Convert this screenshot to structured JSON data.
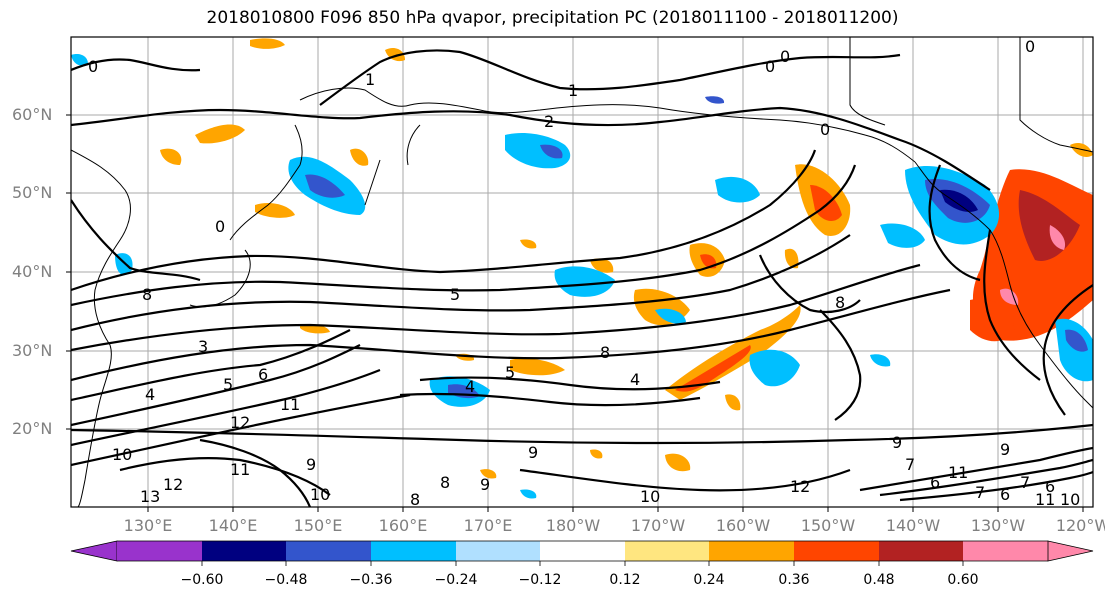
{
  "title": "2018010800 F096 850 hPa qvapor, precipitation PC (2018011100 - 2018011200)",
  "map": {
    "latitude_labels": [
      "60°N",
      "50°N",
      "40°N",
      "30°N",
      "20°N"
    ],
    "longitude_labels": [
      "130°E",
      "140°E",
      "150°E",
      "160°E",
      "170°E",
      "180°W",
      "170°W",
      "160°W",
      "150°W",
      "140°W",
      "130°W",
      "120°W"
    ],
    "contour_labels": [
      "0",
      "0",
      "0",
      "1",
      "1",
      "2",
      "0",
      "0",
      "0",
      "5",
      "3",
      "4",
      "5",
      "6",
      "8",
      "8",
      "4",
      "4",
      "5",
      "12",
      "11",
      "10",
      "9",
      "9",
      "9",
      "10",
      "12",
      "11",
      "10",
      "13",
      "12",
      "8",
      "8",
      "8",
      "9",
      "7",
      "6",
      "11",
      "9",
      "7",
      "6",
      "11",
      "10",
      "7",
      "6"
    ]
  },
  "colorbar": {
    "ticks": [
      "−0.60",
      "−0.48",
      "−0.36",
      "−0.24",
      "−0.12",
      "0.12",
      "0.24",
      "0.36",
      "0.48",
      "0.60"
    ],
    "colors": [
      "#9933cc",
      "#000080",
      "#3355cc",
      "#00bfff",
      "#b0e0ff",
      "#ffffff",
      "#ffe680",
      "#ffa500",
      "#ff4500",
      "#b22222",
      "#ff88aa"
    ]
  }
}
